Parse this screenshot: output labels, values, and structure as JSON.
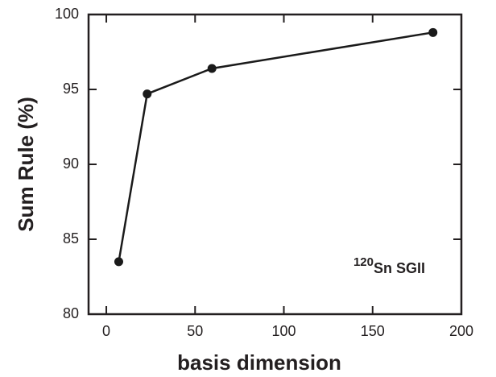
{
  "chart_data": {
    "type": "line",
    "x_label": "basis dimension",
    "y_label": "Sum Rule (%)",
    "annotation": {
      "superscript": "120",
      "text": "Sn SGII"
    },
    "series": [
      {
        "color": "#1a1a1a",
        "x": [
          7,
          23,
          59.5,
          184
        ],
        "values": [
          83.5,
          94.7,
          96.4,
          98.8
        ]
      }
    ],
    "xlim": [
      -10,
      200
    ],
    "xticks": [
      0,
      50,
      100,
      150,
      200
    ],
    "ylim": [
      80,
      100
    ],
    "yticks": [
      80,
      85,
      90,
      95,
      100
    ]
  }
}
